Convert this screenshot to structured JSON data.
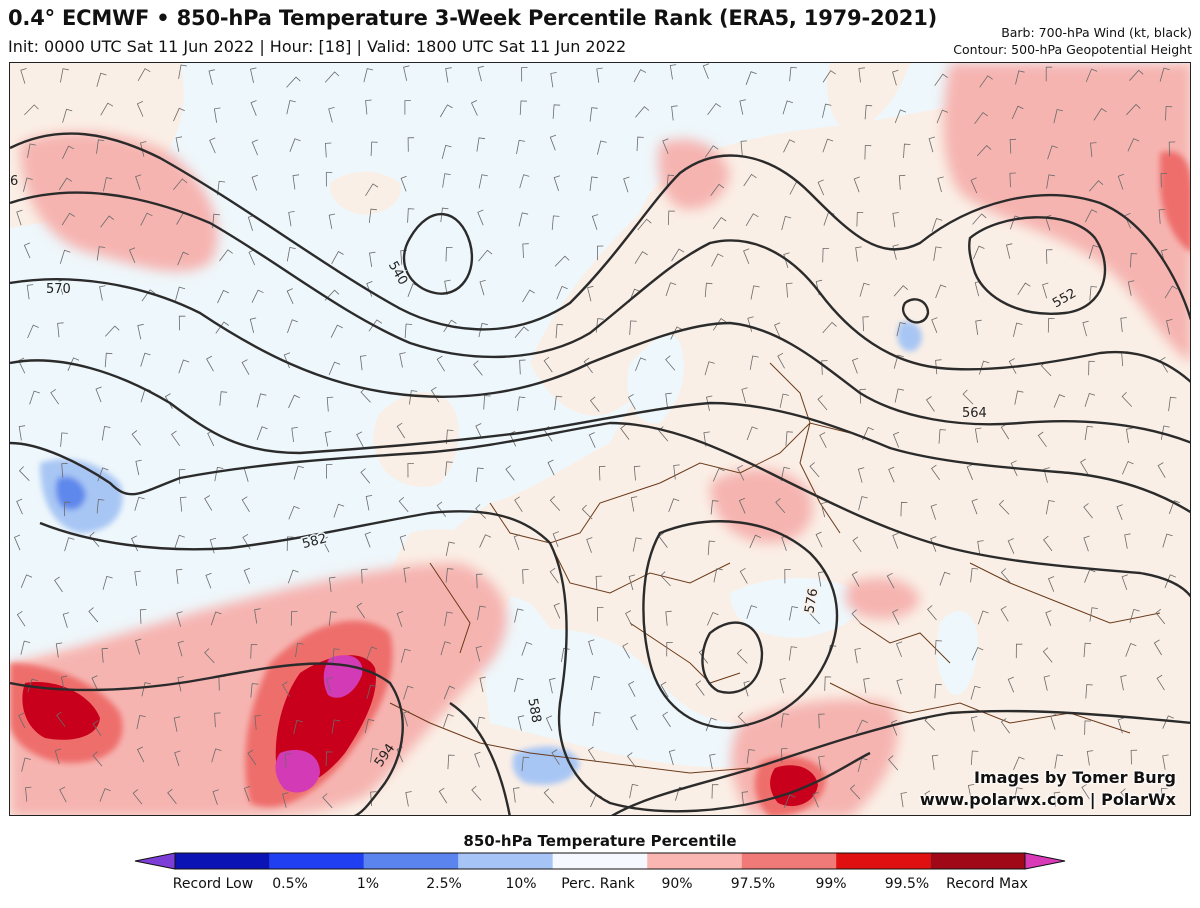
{
  "header": {
    "title": "0.4° ECMWF • 850-hPa Temperature 3-Week Percentile Rank (ERA5, 1979-2021)",
    "subtitle": "Init: 0000 UTC Sat 11 Jun 2022 | Hour: [18] | Valid: 1800 UTC Sat 11 Jun 2022",
    "barb_info": "Barb: 700-hPa Wind (kt, black)",
    "contour_info": "Contour: 500-hPa Geopotential Height"
  },
  "map": {
    "contour_labels": [
      "6",
      "570",
      "540",
      "582",
      "594",
      "588",
      "576",
      "564",
      "552"
    ],
    "credit_line1": "Images by Tomer Burg",
    "credit_line2": "www.polarwx.com | PolarWx",
    "colors": {
      "land_base": "#faefe6",
      "ocean_base": "#eef7fb",
      "border": "#6b3a1a",
      "contour": "#2b2b2b",
      "barb": "#5a5a5a"
    }
  },
  "colorbar": {
    "title": "850-hPa Temperature Percentile",
    "labels": [
      "Record Low",
      "0.5%",
      "1%",
      "2.5%",
      "10%",
      "Perc. Rank",
      "90%",
      "97.5%",
      "99%",
      "99.5%",
      "Record Max"
    ],
    "colors": [
      "#7d3ed8",
      "#0b13b4",
      "#1f3ff0",
      "#5b84ee",
      "#a6c4f5",
      "#f6f8ff",
      "#f9b6b2",
      "#f07a78",
      "#e01010",
      "#a00818",
      "#d93ab8"
    ]
  }
}
